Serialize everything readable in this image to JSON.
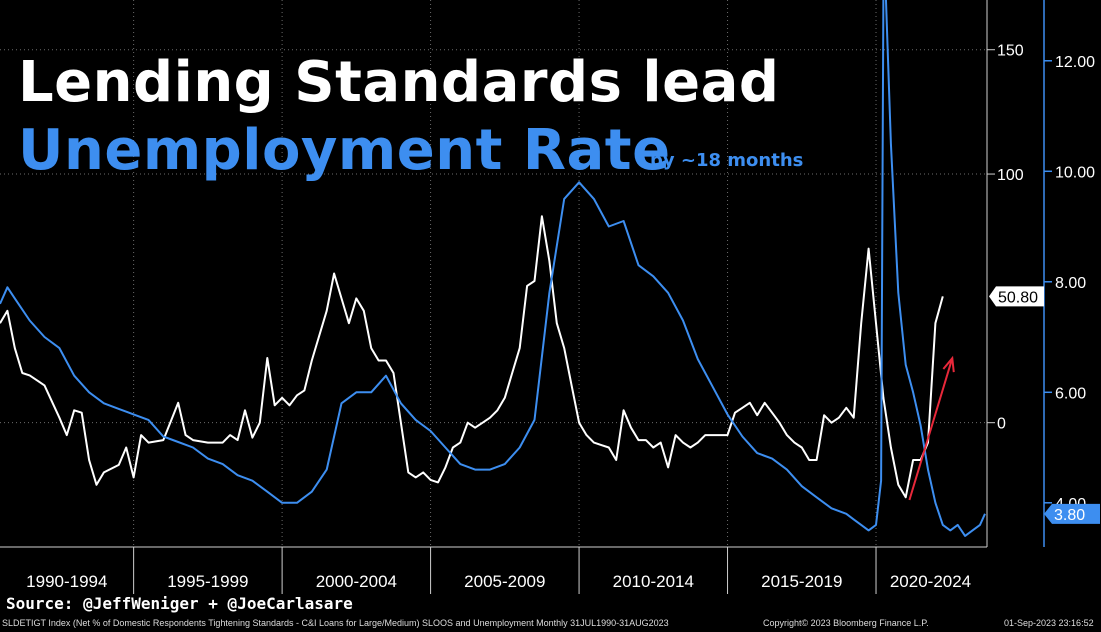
{
  "chart_data": {
    "type": "line",
    "title": "Lending Standards lead",
    "title_line2": "Unemployment Rate",
    "subtitle": "by ~18 months",
    "x_range": [
      1990.5,
      2023.67
    ],
    "x_tick_labels": [
      "1990-1994",
      "1995-1999",
      "2000-2004",
      "2005-2009",
      "2010-2014",
      "2015-2019",
      "2020-2024"
    ],
    "left_axis": {
      "ticks": [
        "150",
        "100",
        "0"
      ],
      "tick_values": [
        150,
        100,
        0
      ],
      "range": [
        -50,
        170
      ]
    },
    "right_axis": {
      "ticks": [
        "12.00",
        "10.00",
        "8.00",
        "6.00",
        "4.00"
      ],
      "tick_values": [
        12,
        10,
        8,
        6,
        4
      ],
      "range": [
        3.2,
        13.1
      ]
    },
    "grid": true,
    "series": [
      {
        "name": "SLDETIGT Index",
        "axis": "left",
        "color": "#ffffff",
        "last_value_label": "50.80",
        "points": [
          [
            1990.5,
            40
          ],
          [
            1990.75,
            45
          ],
          [
            1991.0,
            30
          ],
          [
            1991.25,
            20
          ],
          [
            1991.5,
            19
          ],
          [
            1992.0,
            15
          ],
          [
            1992.5,
            2
          ],
          [
            1992.75,
            -5
          ],
          [
            1993.0,
            5
          ],
          [
            1993.25,
            4
          ],
          [
            1993.5,
            -15
          ],
          [
            1993.75,
            -25
          ],
          [
            1994.0,
            -20
          ],
          [
            1994.5,
            -17
          ],
          [
            1994.75,
            -10
          ],
          [
            1995.0,
            -22
          ],
          [
            1995.25,
            -5
          ],
          [
            1995.5,
            -8
          ],
          [
            1996.0,
            -7
          ],
          [
            1996.5,
            8
          ],
          [
            1996.75,
            -5
          ],
          [
            1997.0,
            -7
          ],
          [
            1997.5,
            -8
          ],
          [
            1998.0,
            -8
          ],
          [
            1998.25,
            -5
          ],
          [
            1998.5,
            -7
          ],
          [
            1998.75,
            5
          ],
          [
            1999.0,
            -6
          ],
          [
            1999.25,
            0
          ],
          [
            1999.5,
            26
          ],
          [
            1999.75,
            7
          ],
          [
            2000.0,
            10
          ],
          [
            2000.25,
            7
          ],
          [
            2000.5,
            11
          ],
          [
            2000.75,
            13
          ],
          [
            2001.0,
            25
          ],
          [
            2001.5,
            45
          ],
          [
            2001.75,
            60
          ],
          [
            2002.0,
            50
          ],
          [
            2002.25,
            40
          ],
          [
            2002.5,
            50
          ],
          [
            2002.75,
            45
          ],
          [
            2003.0,
            30
          ],
          [
            2003.25,
            25
          ],
          [
            2003.5,
            25
          ],
          [
            2003.75,
            20
          ],
          [
            2004.0,
            0
          ],
          [
            2004.25,
            -20
          ],
          [
            2004.5,
            -22
          ],
          [
            2004.75,
            -20
          ],
          [
            2005.0,
            -23
          ],
          [
            2005.25,
            -24
          ],
          [
            2005.5,
            -18
          ],
          [
            2005.75,
            -10
          ],
          [
            2006.0,
            -8
          ],
          [
            2006.25,
            0
          ],
          [
            2006.5,
            -2
          ],
          [
            2006.75,
            0
          ],
          [
            2007.0,
            2
          ],
          [
            2007.25,
            5
          ],
          [
            2007.5,
            10
          ],
          [
            2007.75,
            20
          ],
          [
            2008.0,
            30
          ],
          [
            2008.25,
            55
          ],
          [
            2008.5,
            57
          ],
          [
            2008.75,
            83
          ],
          [
            2009.0,
            65
          ],
          [
            2009.25,
            40
          ],
          [
            2009.5,
            30
          ],
          [
            2009.75,
            15
          ],
          [
            2010.0,
            0
          ],
          [
            2010.25,
            -5
          ],
          [
            2010.5,
            -8
          ],
          [
            2010.75,
            -9
          ],
          [
            2011.0,
            -10
          ],
          [
            2011.25,
            -15
          ],
          [
            2011.5,
            5
          ],
          [
            2011.75,
            -2
          ],
          [
            2012.0,
            -7
          ],
          [
            2012.25,
            -7
          ],
          [
            2012.5,
            -10
          ],
          [
            2012.75,
            -8
          ],
          [
            2013.0,
            -18
          ],
          [
            2013.25,
            -5
          ],
          [
            2013.5,
            -8
          ],
          [
            2013.75,
            -10
          ],
          [
            2014.0,
            -8
          ],
          [
            2014.25,
            -5
          ],
          [
            2014.5,
            -5
          ],
          [
            2014.75,
            -5
          ],
          [
            2015.0,
            -5
          ],
          [
            2015.25,
            4
          ],
          [
            2015.5,
            6
          ],
          [
            2015.75,
            8
          ],
          [
            2016.0,
            3
          ],
          [
            2016.25,
            8
          ],
          [
            2016.5,
            4
          ],
          [
            2016.75,
            0
          ],
          [
            2017.0,
            -5
          ],
          [
            2017.25,
            -8
          ],
          [
            2017.5,
            -10
          ],
          [
            2017.75,
            -15
          ],
          [
            2018.0,
            -15
          ],
          [
            2018.25,
            3
          ],
          [
            2018.5,
            0
          ],
          [
            2018.75,
            2
          ],
          [
            2019.0,
            6
          ],
          [
            2019.25,
            2
          ],
          [
            2019.5,
            40
          ],
          [
            2019.75,
            70
          ],
          [
            2020.0,
            40
          ],
          [
            2020.25,
            10
          ],
          [
            2020.5,
            -10
          ],
          [
            2020.75,
            -25
          ],
          [
            2021.0,
            -30
          ],
          [
            2021.25,
            -15
          ],
          [
            2021.5,
            -15
          ],
          [
            2021.75,
            -8
          ],
          [
            2022.0,
            40
          ],
          [
            2022.25,
            50.8
          ]
        ]
      },
      {
        "name": "Unemployment",
        "axis": "right",
        "color": "#3d8ef0",
        "last_value_label": "3.80",
        "points": [
          [
            1990.5,
            7.6
          ],
          [
            1990.75,
            7.9
          ],
          [
            1991.0,
            7.7
          ],
          [
            1991.5,
            7.3
          ],
          [
            1992.0,
            7.0
          ],
          [
            1992.5,
            6.8
          ],
          [
            1993.0,
            6.3
          ],
          [
            1993.5,
            6.0
          ],
          [
            1994.0,
            5.8
          ],
          [
            1994.5,
            5.7
          ],
          [
            1995.0,
            5.6
          ],
          [
            1995.5,
            5.5
          ],
          [
            1996.0,
            5.2
          ],
          [
            1996.5,
            5.1
          ],
          [
            1997.0,
            5.0
          ],
          [
            1997.5,
            4.8
          ],
          [
            1998.0,
            4.7
          ],
          [
            1998.5,
            4.5
          ],
          [
            1999.0,
            4.4
          ],
          [
            1999.5,
            4.2
          ],
          [
            2000.0,
            4.0
          ],
          [
            2000.5,
            4.0
          ],
          [
            2001.0,
            4.2
          ],
          [
            2001.5,
            4.6
          ],
          [
            2002.0,
            5.8
          ],
          [
            2002.5,
            6.0
          ],
          [
            2003.0,
            6.0
          ],
          [
            2003.5,
            6.3
          ],
          [
            2004.0,
            5.8
          ],
          [
            2004.5,
            5.5
          ],
          [
            2005.0,
            5.3
          ],
          [
            2005.5,
            5.0
          ],
          [
            2006.0,
            4.7
          ],
          [
            2006.5,
            4.6
          ],
          [
            2007.0,
            4.6
          ],
          [
            2007.5,
            4.7
          ],
          [
            2008.0,
            5.0
          ],
          [
            2008.5,
            5.5
          ],
          [
            2009.0,
            7.8
          ],
          [
            2009.5,
            9.5
          ],
          [
            2010.0,
            9.8
          ],
          [
            2010.5,
            9.5
          ],
          [
            2011.0,
            9.0
          ],
          [
            2011.5,
            9.1
          ],
          [
            2012.0,
            8.3
          ],
          [
            2012.5,
            8.1
          ],
          [
            2013.0,
            7.8
          ],
          [
            2013.5,
            7.3
          ],
          [
            2014.0,
            6.6
          ],
          [
            2014.5,
            6.1
          ],
          [
            2015.0,
            5.6
          ],
          [
            2015.5,
            5.2
          ],
          [
            2016.0,
            4.9
          ],
          [
            2016.5,
            4.8
          ],
          [
            2017.0,
            4.6
          ],
          [
            2017.5,
            4.3
          ],
          [
            2018.0,
            4.1
          ],
          [
            2018.5,
            3.9
          ],
          [
            2019.0,
            3.8
          ],
          [
            2019.25,
            3.7
          ],
          [
            2019.5,
            3.6
          ],
          [
            2019.75,
            3.5
          ],
          [
            2020.0,
            3.6
          ],
          [
            2020.17,
            4.4
          ],
          [
            2020.25,
            14.7
          ],
          [
            2020.33,
            13.2
          ],
          [
            2020.5,
            10.5
          ],
          [
            2020.75,
            7.8
          ],
          [
            2021.0,
            6.5
          ],
          [
            2021.25,
            6.0
          ],
          [
            2021.5,
            5.4
          ],
          [
            2021.75,
            4.6
          ],
          [
            2022.0,
            4.0
          ],
          [
            2022.25,
            3.6
          ],
          [
            2022.5,
            3.5
          ],
          [
            2022.75,
            3.6
          ],
          [
            2023.0,
            3.4
          ],
          [
            2023.25,
            3.5
          ],
          [
            2023.5,
            3.6
          ],
          [
            2023.67,
            3.8
          ]
        ]
      }
    ],
    "annotation": {
      "type": "arrow",
      "color": "#e8283a",
      "from": [
        2022.0,
        -15
      ],
      "to": [
        2022.4,
        38
      ]
    }
  },
  "title_line1": "Lending Standards lead",
  "title_line2": "Unemployment Rate",
  "subtitle": "by ~18 months",
  "source": "Source: @JeffWeniger + @JoeCarlasare",
  "footer": {
    "left": "SLDETIGT Index (Net % of Domestic Respondents Tightening Standards - C&I Loans for Large/Medium) SLOOS and Unemployment  Monthly 31JUL1990-31AUG2023",
    "middle": "Copyright© 2023 Bloomberg Finance L.P.",
    "right": "01-Sep-2023 23:16:52"
  }
}
